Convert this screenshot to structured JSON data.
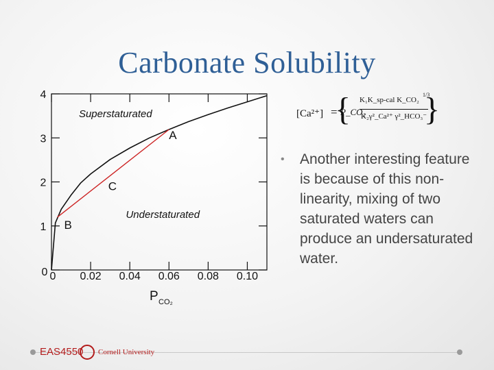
{
  "title": "Carbonate Solubility",
  "bullet": "Another interesting feature is because of this non-linearity, mixing of two saturated waters can produce an undersaturated water.",
  "footer": {
    "course": "EAS4550",
    "university": "Cornell University"
  },
  "formula": {
    "lhs": "[Ca²⁺]",
    "numerator": "K₁K_sp-cal K_CO₂",
    "pressure": "P_CO₂",
    "denominator": "K₂γ²_Ca²⁺ γ²_HCO₃⁻",
    "exponent": "1/3"
  },
  "colors": {
    "title": "#2f5f96",
    "curve": "#111111",
    "mixing_line": "#cc2222"
  },
  "chart_data": {
    "type": "line",
    "x_ticks": [
      "0",
      "0.02",
      "0.04",
      "0.06",
      "0.08",
      "0.10"
    ],
    "y_ticks": [
      "0",
      "1",
      "2",
      "3",
      "4"
    ],
    "xlim": [
      0,
      0.11
    ],
    "ylim": [
      0,
      4
    ],
    "xlabel": "P",
    "xlabel_sub": "CO₂",
    "series": [
      {
        "x": [
          0.0,
          0.002,
          0.005,
          0.01,
          0.015,
          0.02,
          0.03,
          0.04,
          0.05,
          0.06,
          0.07,
          0.08,
          0.09,
          0.1,
          0.11
        ],
        "y": [
          0.0,
          1.07,
          1.38,
          1.7,
          1.98,
          2.18,
          2.51,
          2.77,
          3.0,
          3.19,
          3.37,
          3.53,
          3.68,
          3.82,
          3.96
        ]
      },
      {
        "x": [
          0.003,
          0.06
        ],
        "y": [
          1.2,
          3.19
        ]
      }
    ],
    "annotations": [
      {
        "text": "Superstaturated",
        "x": 0.014,
        "y": 3.47
      },
      {
        "text": "Understaturated",
        "x": 0.038,
        "y": 1.18
      },
      {
        "text": "A",
        "x": 0.06,
        "y": 2.97
      },
      {
        "text": "B",
        "x": 0.0065,
        "y": 0.93
      },
      {
        "text": "C",
        "x": 0.029,
        "y": 1.81
      }
    ]
  }
}
